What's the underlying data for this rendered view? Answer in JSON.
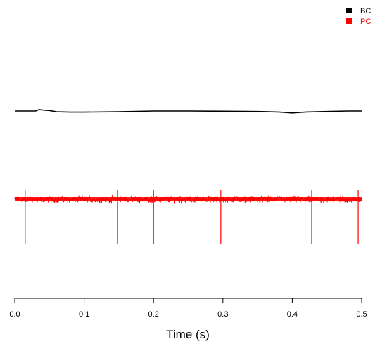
{
  "chart_data": {
    "type": "line",
    "title": "",
    "xlabel": "Time (s)",
    "ylabel": "",
    "xlim": [
      0,
      0.5
    ],
    "x_ticks": [
      0.0,
      0.1,
      0.2,
      0.3,
      0.4,
      0.5
    ],
    "x_tick_labels": [
      "0.0",
      "0.1",
      "0.2",
      "0.3",
      "0.4",
      "0.5"
    ],
    "y_axis_shown": false,
    "grid": false,
    "legend_position": "top-right",
    "series": [
      {
        "name": "BC",
        "color": "#000000",
        "baseline_offset": 0,
        "x": [
          0.0,
          0.03,
          0.035,
          0.04,
          0.05,
          0.06,
          0.08,
          0.1,
          0.15,
          0.2,
          0.25,
          0.3,
          0.35,
          0.38,
          0.39,
          0.4,
          0.41,
          0.42,
          0.45,
          0.48,
          0.5
        ],
        "y": [
          0.0,
          0.0,
          0.6,
          0.4,
          0.2,
          -0.3,
          -0.45,
          -0.45,
          -0.3,
          0.0,
          0.0,
          -0.1,
          -0.2,
          -0.4,
          -0.6,
          -0.8,
          -0.6,
          -0.4,
          -0.2,
          0.0,
          0.0
        ]
      },
      {
        "name": "PC",
        "color": "#ff0000",
        "baseline_offset": -1,
        "noise_band": 0.35,
        "spike_times": [
          0.015,
          0.148,
          0.2,
          0.297,
          0.428,
          0.495
        ],
        "spike_up": 1.2,
        "spike_down": -5.5
      }
    ]
  }
}
